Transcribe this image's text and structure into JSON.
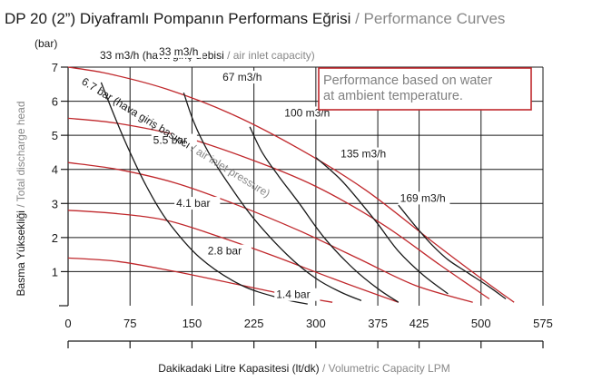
{
  "colors": {
    "pressure_curve": "#c0282c",
    "flow_curve": "#1a1a1a",
    "note_border": "#c0282c",
    "note_text": "#808080",
    "grey_text": "#888888",
    "axis": "#1a1a1a"
  },
  "chart_data": {
    "type": "line",
    "title": "DP 20 (2”) Diyaframlı Pompanın Performans Eğrisi",
    "title_separator": " / ",
    "title_en": "Performance Curves",
    "xlabel": "Dakikadaki Litre Kapasitesi (lt/dk)",
    "xlabel_en": "Volumetric Capacity LPM",
    "ylabel": "Basma Yüksekliği",
    "ylabel_en": "Total discharge head",
    "y_unit": "(bar)",
    "xlim": [
      0,
      575
    ],
    "ylim": [
      0,
      7
    ],
    "x_ticks": [
      "0",
      "75",
      "150",
      "225",
      "300",
      "375",
      "425",
      "500",
      "575"
    ],
    "x_tick_values": [
      0,
      75,
      150,
      225,
      300,
      375,
      425,
      500,
      575
    ],
    "y_ticks": [
      "1",
      "2",
      "3",
      "4",
      "5",
      "6",
      "7"
    ],
    "y_tick_values": [
      1,
      2,
      3,
      4,
      5,
      6,
      7
    ],
    "grid": true,
    "note": [
      "Performance based on water",
      "at ambient temperature."
    ],
    "air_pressure_label": "6.7 bar (hava giriş basıncı",
    "air_pressure_label_en": "air inlet pressure)",
    "air_pressure_label_sep": " / ",
    "air_flow_header": "33 m3/h (hava giriş debisi",
    "air_flow_header_en": "air inlet capacity)",
    "air_flow_header_sep": " / ",
    "pressure_series": [
      {
        "name": "6.7 bar",
        "x": [
          0,
          50,
          120,
          200,
          280,
          360,
          440,
          500,
          540
        ],
        "y": [
          7,
          6.8,
          6.35,
          5.6,
          4.6,
          3.4,
          1.9,
          0.8,
          0.1
        ]
      },
      {
        "name": "5.5 bar",
        "x": [
          0,
          60,
          140,
          220,
          300,
          380,
          450,
          510
        ],
        "y": [
          5.5,
          5.35,
          4.95,
          4.3,
          3.5,
          2.4,
          1.2,
          0.2
        ]
      },
      {
        "name": "4.1 bar",
        "x": [
          0,
          60,
          130,
          200,
          280,
          350,
          420,
          490
        ],
        "y": [
          4.2,
          4.0,
          3.6,
          3.0,
          2.2,
          1.4,
          0.6,
          0.1
        ]
      },
      {
        "name": "2.8 bar",
        "x": [
          0,
          60,
          120,
          180,
          250,
          320,
          400
        ],
        "y": [
          2.8,
          2.7,
          2.5,
          2.05,
          1.45,
          0.8,
          0.1
        ]
      },
      {
        "name": "1.4 bar",
        "x": [
          0,
          60,
          130,
          200,
          260,
          320
        ],
        "y": [
          1.4,
          1.3,
          1.0,
          0.65,
          0.35,
          0.1
        ]
      }
    ],
    "flow_series": [
      {
        "name": "33 m3/h",
        "x": [
          40,
          58,
          75,
          95,
          120,
          160,
          210,
          260,
          290
        ],
        "y": [
          6.55,
          5.45,
          4.5,
          3.5,
          2.5,
          1.4,
          0.6,
          0.2,
          0.05
        ]
      },
      {
        "name": "67 m3/h",
        "x": [
          140,
          152,
          170,
          195,
          225,
          265,
          300,
          330,
          355
        ],
        "y": [
          6.25,
          5.4,
          4.5,
          3.55,
          2.55,
          1.5,
          0.8,
          0.4,
          0.15
        ]
      },
      {
        "name": "100 m3/h",
        "x": [
          220,
          235,
          255,
          280,
          310,
          345,
          375,
          400
        ],
        "y": [
          5.25,
          4.5,
          3.8,
          3.0,
          2.0,
          1.1,
          0.5,
          0.1
        ]
      },
      {
        "name": "135 m3/h",
        "x": [
          300,
          330,
          355,
          375,
          400,
          430,
          460
        ],
        "y": [
          4.35,
          3.7,
          3.0,
          2.4,
          1.6,
          0.9,
          0.35
        ]
      },
      {
        "name": "169 m3/h",
        "x": [
          400,
          420,
          440,
          460,
          485,
          510,
          530
        ],
        "y": [
          2.95,
          2.35,
          1.8,
          1.35,
          0.95,
          0.55,
          0.2
        ]
      }
    ],
    "data_labels": [
      {
        "text": "33 m3/h",
        "x": 110,
        "y": 7.35
      },
      {
        "text": "67 m3/h",
        "x": 187,
        "y": 6.6
      },
      {
        "text": "100 m3/h",
        "x": 262,
        "y": 5.55
      },
      {
        "text": "135 m3/h",
        "x": 330,
        "y": 4.35
      },
      {
        "text": "169 m3/h",
        "x": 402,
        "y": 3.05
      },
      {
        "text": "5.5 bar",
        "x": 103,
        "y": 4.75
      },
      {
        "text": "4.1 bar",
        "x": 131,
        "y": 2.9
      },
      {
        "text": "2.8 bar",
        "x": 169,
        "y": 1.5
      },
      {
        "text": "1.4 bar",
        "x": 252,
        "y": 0.22
      }
    ]
  }
}
